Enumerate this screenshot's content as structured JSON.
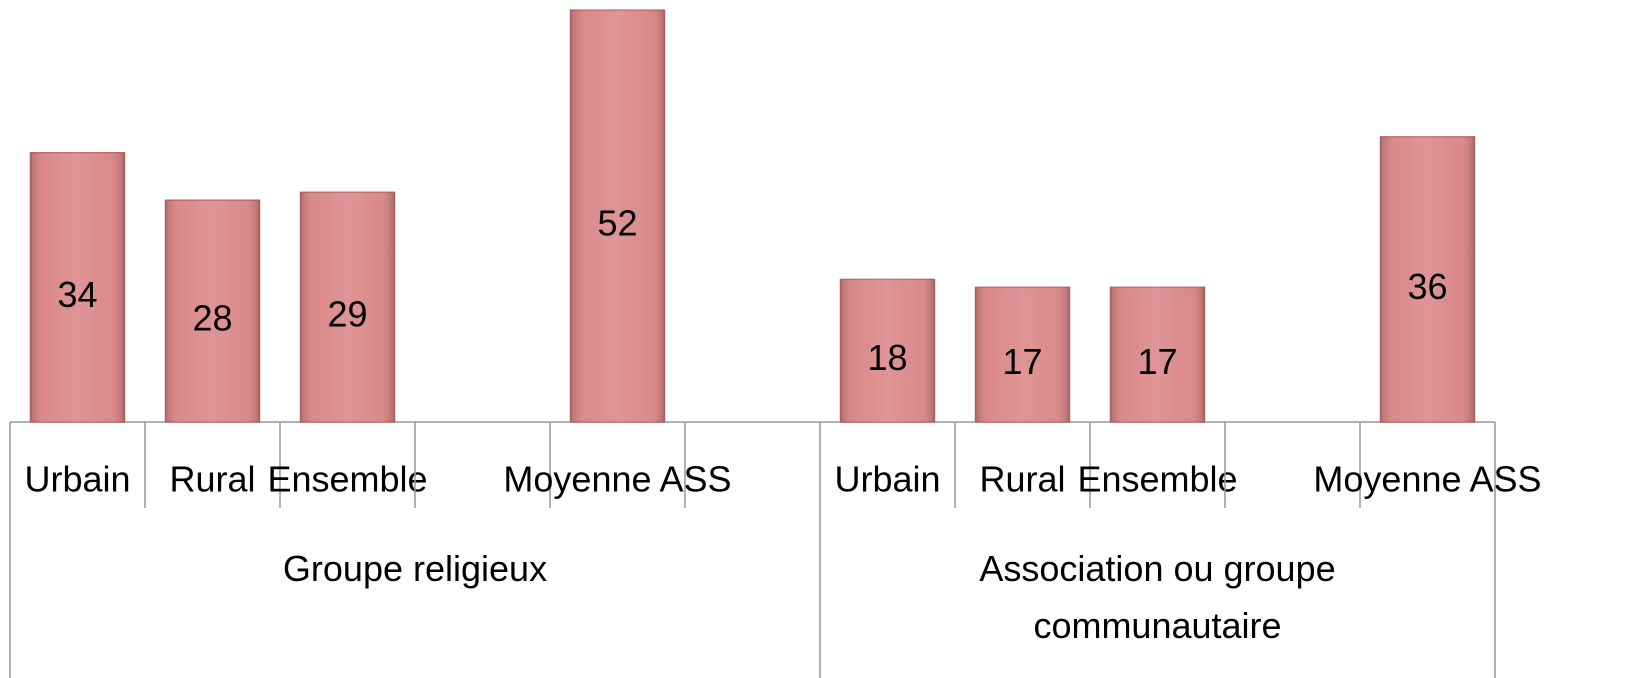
{
  "chart_data": {
    "type": "bar",
    "color": "#d98383",
    "groups": [
      {
        "name": "Groupe religieux",
        "categories": [
          "Urbain",
          "Rural",
          "Ensemble",
          null,
          "Moyenne ASS",
          null
        ],
        "values": [
          34,
          28,
          29,
          null,
          52,
          null
        ]
      },
      {
        "name": "Association ou groupe communautaire",
        "categories": [
          "Urbain",
          "Rural",
          "Ensemble",
          null,
          "Moyenne ASS"
        ],
        "values": [
          18,
          17,
          17,
          null,
          36
        ]
      }
    ]
  }
}
